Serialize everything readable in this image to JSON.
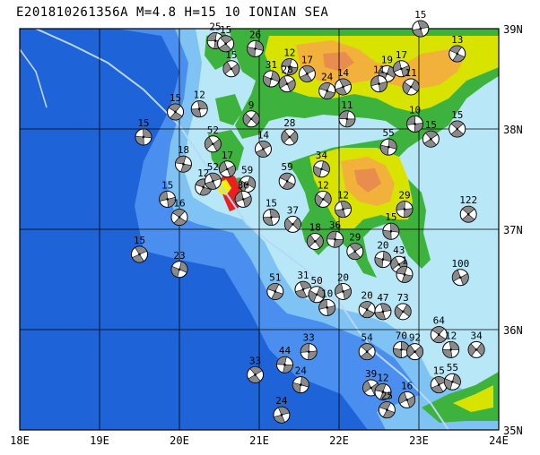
{
  "header": {
    "event_id": "E201810261356A",
    "magnitude": "M=4.8",
    "depth": "H=",
    "depth_value": "15",
    "mechanism_depth": "10",
    "region": "IONIAN SEA"
  },
  "axes": {
    "lon_labels": [
      "18E",
      "19E",
      "20E",
      "21E",
      "22E",
      "23E",
      "24E"
    ],
    "lat_labels": [
      "35N",
      "36N",
      "37N",
      "38N",
      "39N"
    ],
    "lon_range": [
      18,
      24
    ],
    "lat_range": [
      35,
      39
    ]
  },
  "colors": {
    "deep_sea": "#1e63d7",
    "mid_sea": "#4a8ff0",
    "shelf": "#7fc3f5",
    "coast": "#b8e8f8",
    "lowland": "#3db33d",
    "upland": "#d8e400",
    "mountain": "#f2b13a",
    "peak": "#e88c50",
    "event_red": "#e82020",
    "event_yellow": "#f4f000",
    "grid": "#000000"
  },
  "mechanisms": [
    {
      "lon": 20.45,
      "lat": 38.88,
      "depth": "25"
    },
    {
      "lon": 20.58,
      "lat": 38.85,
      "depth": "15"
    },
    {
      "lon": 20.95,
      "lat": 38.8,
      "depth": "26"
    },
    {
      "lon": 20.65,
      "lat": 38.6,
      "depth": "15"
    },
    {
      "lon": 21.38,
      "lat": 38.62,
      "depth": "12"
    },
    {
      "lon": 21.6,
      "lat": 38.55,
      "depth": "17"
    },
    {
      "lon": 21.15,
      "lat": 38.5,
      "depth": "31"
    },
    {
      "lon": 21.35,
      "lat": 38.45,
      "depth": "28"
    },
    {
      "lon": 21.85,
      "lat": 38.38,
      "depth": "24"
    },
    {
      "lon": 22.05,
      "lat": 38.42,
      "depth": "14"
    },
    {
      "lon": 22.6,
      "lat": 38.55,
      "depth": "19"
    },
    {
      "lon": 22.78,
      "lat": 38.6,
      "depth": "17"
    },
    {
      "lon": 23.48,
      "lat": 38.75,
      "depth": "13"
    },
    {
      "lon": 23.02,
      "lat": 39.0,
      "depth": "15"
    },
    {
      "lon": 22.9,
      "lat": 38.42,
      "depth": "11"
    },
    {
      "lon": 22.5,
      "lat": 38.45,
      "depth": "11"
    },
    {
      "lon": 19.95,
      "lat": 38.17,
      "depth": "15"
    },
    {
      "lon": 20.25,
      "lat": 38.2,
      "depth": "12"
    },
    {
      "lon": 20.9,
      "lat": 38.1,
      "depth": "9"
    },
    {
      "lon": 22.95,
      "lat": 38.05,
      "depth": "10"
    },
    {
      "lon": 23.48,
      "lat": 38.0,
      "depth": "15"
    },
    {
      "lon": 19.55,
      "lat": 37.92,
      "depth": "15"
    },
    {
      "lon": 21.38,
      "lat": 37.92,
      "depth": "28"
    },
    {
      "lon": 22.1,
      "lat": 38.1,
      "depth": "11"
    },
    {
      "lon": 23.15,
      "lat": 37.9,
      "depth": "15"
    },
    {
      "lon": 22.62,
      "lat": 37.82,
      "depth": "55"
    },
    {
      "lon": 20.42,
      "lat": 37.85,
      "depth": "52"
    },
    {
      "lon": 20.05,
      "lat": 37.65,
      "depth": "18"
    },
    {
      "lon": 21.05,
      "lat": 37.8,
      "depth": "14"
    },
    {
      "lon": 21.78,
      "lat": 37.6,
      "depth": "34"
    },
    {
      "lon": 20.6,
      "lat": 37.6,
      "depth": "17"
    },
    {
      "lon": 20.3,
      "lat": 37.42,
      "depth": "12"
    },
    {
      "lon": 20.42,
      "lat": 37.48,
      "depth": "52"
    },
    {
      "lon": 20.85,
      "lat": 37.45,
      "depth": "59"
    },
    {
      "lon": 20.8,
      "lat": 37.3,
      "depth": "36"
    },
    {
      "lon": 21.35,
      "lat": 37.48,
      "depth": "59"
    },
    {
      "lon": 22.05,
      "lat": 37.2,
      "depth": "12"
    },
    {
      "lon": 21.8,
      "lat": 37.3,
      "depth": "12"
    },
    {
      "lon": 19.85,
      "lat": 37.3,
      "depth": "15"
    },
    {
      "lon": 20.0,
      "lat": 37.12,
      "depth": "16"
    },
    {
      "lon": 21.15,
      "lat": 37.12,
      "depth": "15"
    },
    {
      "lon": 21.42,
      "lat": 37.05,
      "depth": "37"
    },
    {
      "lon": 22.82,
      "lat": 37.2,
      "depth": "29"
    },
    {
      "lon": 23.62,
      "lat": 37.15,
      "depth": "122"
    },
    {
      "lon": 22.65,
      "lat": 36.98,
      "depth": "15"
    },
    {
      "lon": 21.7,
      "lat": 36.88,
      "depth": "18"
    },
    {
      "lon": 21.95,
      "lat": 36.9,
      "depth": "36"
    },
    {
      "lon": 22.2,
      "lat": 36.78,
      "depth": "29"
    },
    {
      "lon": 22.55,
      "lat": 36.7,
      "depth": "20"
    },
    {
      "lon": 22.75,
      "lat": 36.65,
      "depth": "43"
    },
    {
      "lon": 22.82,
      "lat": 36.55,
      "depth": "1"
    },
    {
      "lon": 19.5,
      "lat": 36.75,
      "depth": "15"
    },
    {
      "lon": 20.0,
      "lat": 36.6,
      "depth": "23"
    },
    {
      "lon": 23.52,
      "lat": 36.52,
      "depth": "100"
    },
    {
      "lon": 21.2,
      "lat": 36.38,
      "depth": "51"
    },
    {
      "lon": 21.55,
      "lat": 36.4,
      "depth": "31"
    },
    {
      "lon": 21.72,
      "lat": 36.35,
      "depth": "50"
    },
    {
      "lon": 22.05,
      "lat": 36.38,
      "depth": "20"
    },
    {
      "lon": 22.35,
      "lat": 36.2,
      "depth": "20"
    },
    {
      "lon": 22.55,
      "lat": 36.18,
      "depth": "47"
    },
    {
      "lon": 22.8,
      "lat": 36.18,
      "depth": "73"
    },
    {
      "lon": 21.85,
      "lat": 36.22,
      "depth": "10"
    },
    {
      "lon": 23.25,
      "lat": 35.95,
      "depth": "64"
    },
    {
      "lon": 23.4,
      "lat": 35.8,
      "depth": "12"
    },
    {
      "lon": 23.72,
      "lat": 35.8,
      "depth": "34"
    },
    {
      "lon": 21.62,
      "lat": 35.78,
      "depth": "33"
    },
    {
      "lon": 22.35,
      "lat": 35.78,
      "depth": "54"
    },
    {
      "lon": 22.78,
      "lat": 35.8,
      "depth": "70"
    },
    {
      "lon": 22.95,
      "lat": 35.78,
      "depth": "92"
    },
    {
      "lon": 21.32,
      "lat": 35.65,
      "depth": "44"
    },
    {
      "lon": 20.95,
      "lat": 35.55,
      "depth": "33"
    },
    {
      "lon": 21.52,
      "lat": 35.45,
      "depth": "24"
    },
    {
      "lon": 22.4,
      "lat": 35.42,
      "depth": "39"
    },
    {
      "lon": 22.55,
      "lat": 35.38,
      "depth": "12"
    },
    {
      "lon": 23.25,
      "lat": 35.45,
      "depth": "15"
    },
    {
      "lon": 23.42,
      "lat": 35.48,
      "depth": "55"
    },
    {
      "lon": 22.85,
      "lat": 35.3,
      "depth": "16"
    },
    {
      "lon": 22.6,
      "lat": 35.2,
      "depth": "25"
    },
    {
      "lon": 21.28,
      "lat": 35.15,
      "depth": "24"
    }
  ]
}
